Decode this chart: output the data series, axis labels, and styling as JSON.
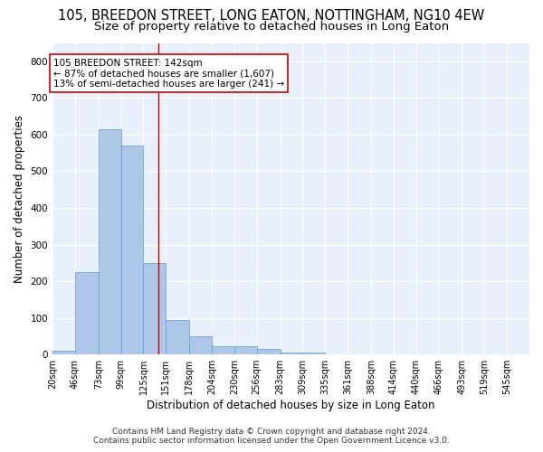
{
  "title": "105, BREEDON STREET, LONG EATON, NOTTINGHAM, NG10 4EW",
  "subtitle": "Size of property relative to detached houses in Long Eaton",
  "xlabel": "Distribution of detached houses by size in Long Eaton",
  "ylabel": "Number of detached properties",
  "bar_values": [
    10,
    225,
    615,
    570,
    250,
    95,
    50,
    22,
    22,
    15,
    5,
    5,
    0,
    0,
    0,
    0,
    0,
    0,
    0,
    0,
    0
  ],
  "bin_edges": [
    20,
    46,
    73,
    99,
    125,
    151,
    178,
    204,
    230,
    256,
    283,
    309,
    335,
    361,
    388,
    414,
    440,
    466,
    493,
    519,
    545
  ],
  "tick_labels": [
    "20sqm",
    "46sqm",
    "73sqm",
    "99sqm",
    "125sqm",
    "151sqm",
    "178sqm",
    "204sqm",
    "230sqm",
    "256sqm",
    "283sqm",
    "309sqm",
    "335sqm",
    "361sqm",
    "388sqm",
    "414sqm",
    "440sqm",
    "466sqm",
    "493sqm",
    "519sqm",
    "545sqm"
  ],
  "bar_color": "#aec6e8",
  "bar_edgecolor": "#5b9bd5",
  "bar_linewidth": 0.5,
  "vline_x": 142,
  "vline_color": "#cc0000",
  "ylim": [
    0,
    850
  ],
  "yticks": [
    0,
    100,
    200,
    300,
    400,
    500,
    600,
    700,
    800
  ],
  "annotation_line1": "105 BREEDON STREET: 142sqm",
  "annotation_line2": "← 87% of detached houses are smaller (1,607)",
  "annotation_line3": "13% of semi-detached houses are larger (241) →",
  "annotation_box_color": "#ffffff",
  "annotation_box_edgecolor": "#cc0000",
  "footer_line1": "Contains HM Land Registry data © Crown copyright and database right 2024.",
  "footer_line2": "Contains public sector information licensed under the Open Government Licence v3.0.",
  "background_color": "#e8f0fb",
  "grid_color": "#ffffff",
  "title_fontsize": 10.5,
  "subtitle_fontsize": 9.5,
  "axis_label_fontsize": 8.5,
  "tick_fontsize": 7,
  "annotation_fontsize": 7.5,
  "footer_fontsize": 6.5
}
